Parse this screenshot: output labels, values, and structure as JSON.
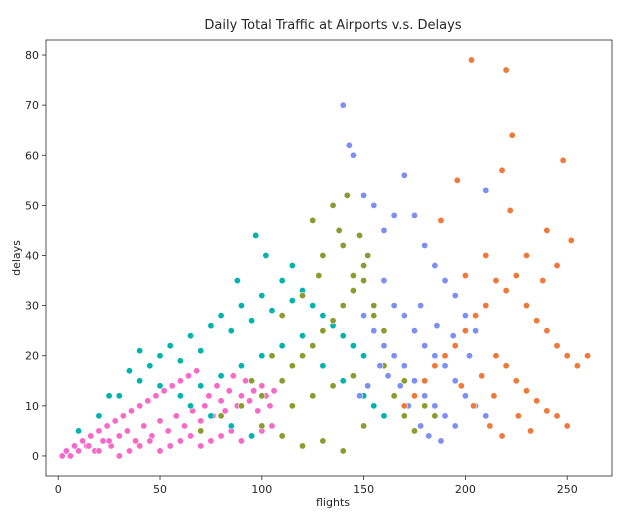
{
  "chart_data": {
    "type": "scatter",
    "title": "Daily Total Traffic at Airports v.s. Delays",
    "xlabel": "flights",
    "ylabel": "delays",
    "xlim": [
      -6,
      272
    ],
    "ylim": [
      -4,
      83
    ],
    "xticks": [
      0,
      50,
      100,
      150,
      200,
      250
    ],
    "yticks": [
      0,
      10,
      20,
      30,
      40,
      50,
      60,
      70,
      80
    ],
    "grid": false,
    "legend": "none",
    "series": [
      {
        "color": "#f768c8",
        "points": [
          [
            2,
            0
          ],
          [
            4,
            1
          ],
          [
            6,
            0
          ],
          [
            8,
            2
          ],
          [
            10,
            1
          ],
          [
            12,
            3
          ],
          [
            14,
            2
          ],
          [
            16,
            4
          ],
          [
            18,
            1
          ],
          [
            20,
            5
          ],
          [
            22,
            3
          ],
          [
            24,
            6
          ],
          [
            26,
            2
          ],
          [
            28,
            7
          ],
          [
            30,
            4
          ],
          [
            32,
            8
          ],
          [
            34,
            5
          ],
          [
            36,
            9
          ],
          [
            38,
            3
          ],
          [
            40,
            10
          ],
          [
            42,
            6
          ],
          [
            44,
            11
          ],
          [
            46,
            4
          ],
          [
            48,
            12
          ],
          [
            50,
            7
          ],
          [
            52,
            13
          ],
          [
            54,
            5
          ],
          [
            56,
            14
          ],
          [
            58,
            8
          ],
          [
            60,
            15
          ],
          [
            62,
            6
          ],
          [
            64,
            16
          ],
          [
            66,
            9
          ],
          [
            68,
            17
          ],
          [
            70,
            7
          ],
          [
            72,
            10
          ],
          [
            74,
            12
          ],
          [
            76,
            8
          ],
          [
            78,
            14
          ],
          [
            80,
            11
          ],
          [
            82,
            9
          ],
          [
            84,
            13
          ],
          [
            86,
            16
          ],
          [
            88,
            10
          ],
          [
            90,
            12
          ],
          [
            92,
            15
          ],
          [
            94,
            11
          ],
          [
            96,
            13
          ],
          [
            98,
            9
          ],
          [
            100,
            14
          ],
          [
            102,
            12
          ],
          [
            104,
            10
          ],
          [
            106,
            13
          ],
          [
            30,
            0
          ],
          [
            40,
            2
          ],
          [
            50,
            1
          ],
          [
            60,
            3
          ],
          [
            70,
            2
          ],
          [
            80,
            4
          ],
          [
            90,
            3
          ],
          [
            100,
            5
          ],
          [
            110,
            4
          ],
          [
            20,
            1
          ],
          [
            15,
            2
          ],
          [
            25,
            3
          ],
          [
            35,
            1
          ],
          [
            45,
            3
          ],
          [
            55,
            2
          ],
          [
            65,
            4
          ],
          [
            75,
            3
          ],
          [
            85,
            5
          ],
          [
            95,
            4
          ],
          [
            105,
            6
          ]
        ]
      },
      {
        "color": "#00b4ad",
        "points": [
          [
            10,
            5
          ],
          [
            20,
            8
          ],
          [
            30,
            12
          ],
          [
            40,
            15
          ],
          [
            45,
            18
          ],
          [
            50,
            20
          ],
          [
            55,
            22
          ],
          [
            60,
            19
          ],
          [
            65,
            24
          ],
          [
            70,
            21
          ],
          [
            75,
            26
          ],
          [
            80,
            28
          ],
          [
            85,
            25
          ],
          [
            90,
            30
          ],
          [
            95,
            27
          ],
          [
            100,
            32
          ],
          [
            105,
            29
          ],
          [
            110,
            35
          ],
          [
            115,
            31
          ],
          [
            120,
            33
          ],
          [
            125,
            30
          ],
          [
            130,
            28
          ],
          [
            135,
            26
          ],
          [
            140,
            24
          ],
          [
            145,
            22
          ],
          [
            150,
            20
          ],
          [
            60,
            12
          ],
          [
            70,
            14
          ],
          [
            80,
            16
          ],
          [
            90,
            18
          ],
          [
            100,
            20
          ],
          [
            110,
            22
          ],
          [
            120,
            24
          ],
          [
            130,
            18
          ],
          [
            140,
            15
          ],
          [
            150,
            12
          ],
          [
            155,
            10
          ],
          [
            160,
            8
          ],
          [
            97,
            44
          ],
          [
            88,
            35
          ],
          [
            102,
            40
          ],
          [
            115,
            38
          ],
          [
            40,
            21
          ],
          [
            35,
            17
          ],
          [
            25,
            12
          ],
          [
            50,
            14
          ],
          [
            65,
            10
          ],
          [
            75,
            8
          ],
          [
            85,
            6
          ],
          [
            95,
            4
          ]
        ]
      },
      {
        "color": "#8b9b2e",
        "points": [
          [
            70,
            5
          ],
          [
            80,
            8
          ],
          [
            90,
            10
          ],
          [
            100,
            12
          ],
          [
            110,
            15
          ],
          [
            115,
            18
          ],
          [
            120,
            20
          ],
          [
            125,
            22
          ],
          [
            130,
            25
          ],
          [
            135,
            27
          ],
          [
            140,
            30
          ],
          [
            145,
            33
          ],
          [
            150,
            35
          ],
          [
            155,
            28
          ],
          [
            160,
            25
          ],
          [
            165,
            20
          ],
          [
            170,
            15
          ],
          [
            175,
            12
          ],
          [
            180,
            10
          ],
          [
            185,
            8
          ],
          [
            130,
            40
          ],
          [
            138,
            45
          ],
          [
            142,
            52
          ],
          [
            150,
            38
          ],
          [
            125,
            47
          ],
          [
            135,
            50
          ],
          [
            145,
            36
          ],
          [
            155,
            30
          ],
          [
            160,
            18
          ],
          [
            165,
            12
          ],
          [
            170,
            8
          ],
          [
            175,
            5
          ],
          [
            110,
            28
          ],
          [
            120,
            32
          ],
          [
            128,
            36
          ],
          [
            140,
            42
          ],
          [
            148,
            44
          ],
          [
            152,
            40
          ],
          [
            105,
            20
          ],
          [
            95,
            15
          ],
          [
            100,
            6
          ],
          [
            110,
            4
          ],
          [
            120,
            2
          ],
          [
            130,
            3
          ],
          [
            140,
            1
          ],
          [
            150,
            6
          ],
          [
            115,
            10
          ],
          [
            125,
            12
          ],
          [
            135,
            14
          ],
          [
            145,
            16
          ]
        ]
      },
      {
        "color": "#7d8ff0",
        "points": [
          [
            140,
            70
          ],
          [
            143,
            62
          ],
          [
            145,
            60
          ],
          [
            150,
            52
          ],
          [
            155,
            50
          ],
          [
            160,
            45
          ],
          [
            165,
            48
          ],
          [
            170,
            56
          ],
          [
            175,
            48
          ],
          [
            180,
            42
          ],
          [
            185,
            38
          ],
          [
            190,
            35
          ],
          [
            195,
            32
          ],
          [
            200,
            28
          ],
          [
            205,
            25
          ],
          [
            210,
            53
          ],
          [
            160,
            35
          ],
          [
            165,
            30
          ],
          [
            170,
            28
          ],
          [
            175,
            25
          ],
          [
            180,
            22
          ],
          [
            185,
            20
          ],
          [
            190,
            18
          ],
          [
            195,
            15
          ],
          [
            200,
            12
          ],
          [
            205,
            10
          ],
          [
            210,
            8
          ],
          [
            150,
            28
          ],
          [
            155,
            25
          ],
          [
            160,
            22
          ],
          [
            165,
            20
          ],
          [
            170,
            18
          ],
          [
            175,
            15
          ],
          [
            180,
            12
          ],
          [
            185,
            10
          ],
          [
            190,
            8
          ],
          [
            195,
            6
          ],
          [
            178,
            6
          ],
          [
            182,
            4
          ],
          [
            188,
            3
          ],
          [
            172,
            10
          ],
          [
            168,
            14
          ],
          [
            162,
            16
          ],
          [
            158,
            18
          ],
          [
            152,
            14
          ],
          [
            148,
            12
          ],
          [
            178,
            30
          ],
          [
            186,
            26
          ],
          [
            194,
            24
          ],
          [
            202,
            20
          ]
        ]
      },
      {
        "color": "#f07838",
        "points": [
          [
            203,
            79
          ],
          [
            220,
            77
          ],
          [
            223,
            64
          ],
          [
            218,
            57
          ],
          [
            248,
            59
          ],
          [
            252,
            43
          ],
          [
            245,
            38
          ],
          [
            240,
            45
          ],
          [
            230,
            40
          ],
          [
            225,
            36
          ],
          [
            215,
            35
          ],
          [
            210,
            30
          ],
          [
            205,
            28
          ],
          [
            200,
            25
          ],
          [
            195,
            22
          ],
          [
            190,
            20
          ],
          [
            185,
            18
          ],
          [
            180,
            15
          ],
          [
            175,
            12
          ],
          [
            170,
            10
          ],
          [
            200,
            36
          ],
          [
            210,
            40
          ],
          [
            220,
            33
          ],
          [
            230,
            30
          ],
          [
            235,
            27
          ],
          [
            240,
            25
          ],
          [
            245,
            22
          ],
          [
            250,
            20
          ],
          [
            255,
            18
          ],
          [
            260,
            20
          ],
          [
            215,
            20
          ],
          [
            220,
            18
          ],
          [
            225,
            15
          ],
          [
            230,
            13
          ],
          [
            235,
            11
          ],
          [
            240,
            9
          ],
          [
            245,
            8
          ],
          [
            250,
            6
          ],
          [
            222,
            49
          ],
          [
            238,
            35
          ],
          [
            196,
            55
          ],
          [
            188,
            47
          ],
          [
            208,
            16
          ],
          [
            214,
            12
          ],
          [
            226,
            8
          ],
          [
            232,
            5
          ],
          [
            218,
            4
          ],
          [
            212,
            6
          ],
          [
            204,
            10
          ],
          [
            198,
            14
          ]
        ]
      }
    ]
  }
}
